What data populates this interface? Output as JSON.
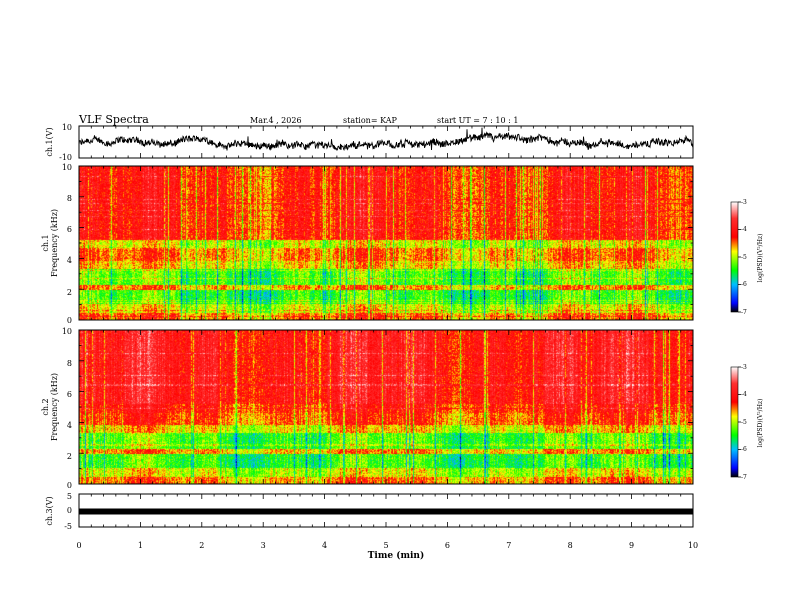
{
  "header": {
    "title": "VLF Spectra",
    "date": "Mar.4 , 2026",
    "station": "station= KAP",
    "start": "start  UT =   7 : 10 : 1"
  },
  "chart_data": [
    {
      "panel": "ch1-waveform",
      "type": "line",
      "ylabel": "ch.1(V)",
      "yticks": [
        "10",
        "-10"
      ],
      "ylim": [
        -10,
        10
      ],
      "xlim": [
        0,
        10
      ],
      "note": "noisy waveform trace centered near -1 V, amplitude about ±4 V"
    },
    {
      "panel": "ch1-spectrogram",
      "type": "heatmap",
      "ylabel": "ch.1",
      "ylabel2": "Frequency (kHz)",
      "yticks": [
        "0",
        "2",
        "4",
        "6",
        "8",
        "10"
      ],
      "ylim": [
        0,
        10
      ],
      "xlim": [
        0,
        10
      ],
      "colorbar": {
        "label": "log(PSD)(V²/Hz)",
        "ticks": [
          "-3",
          "-4",
          "-5",
          "-6",
          "-7"
        ],
        "range": [
          -7,
          -3
        ],
        "colors": [
          "#000000",
          "#0000ff",
          "#00ffff",
          "#00ff00",
          "#ffff00",
          "#ff0000",
          "#ffffff"
        ]
      }
    },
    {
      "panel": "ch2-spectrogram",
      "type": "heatmap",
      "ylabel": "ch.2",
      "ylabel2": "Frequency (kHz)",
      "yticks": [
        "0",
        "2",
        "4",
        "6",
        "8",
        "10"
      ],
      "ylim": [
        0,
        10
      ],
      "xlim": [
        0,
        10
      ],
      "colorbar": {
        "label": "log(PSD)(V²/Hz)",
        "ticks": [
          "-3",
          "-4",
          "-5",
          "-6",
          "-7"
        ],
        "range": [
          -7,
          -3
        ]
      }
    },
    {
      "panel": "ch3-waveform",
      "type": "line",
      "ylabel": "ch.3(V)",
      "yticks": [
        "5",
        "0",
        "-5"
      ],
      "ylim": [
        -5,
        5
      ],
      "xlim": [
        0,
        10
      ],
      "value": -0.3,
      "xlabel": "Time  (min)",
      "xticks": [
        "0",
        "1",
        "2",
        "3",
        "4",
        "5",
        "6",
        "7",
        "8",
        "9",
        "10"
      ]
    }
  ]
}
